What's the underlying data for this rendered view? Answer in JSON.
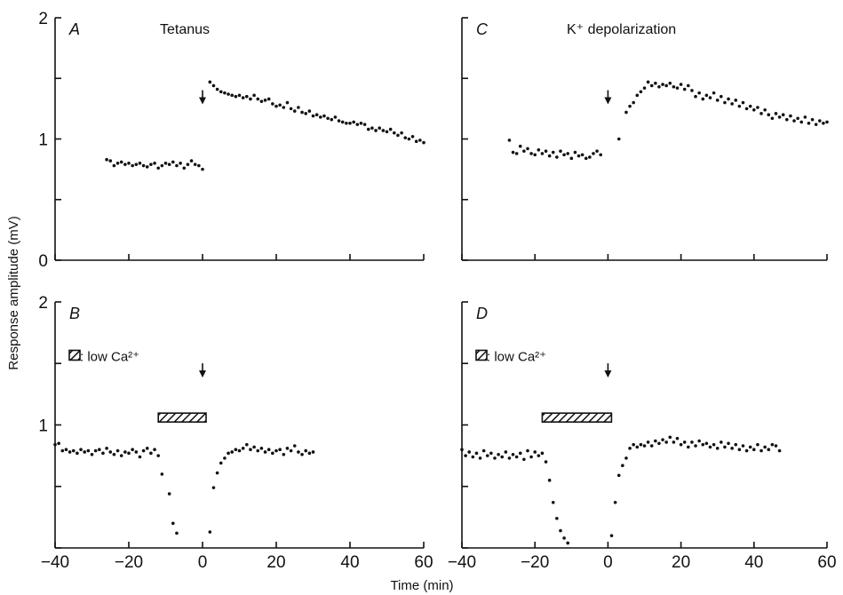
{
  "figure": {
    "ylabel": "Response amplitude (mV)",
    "xlabel": "Time (min)"
  },
  "chart_data": [
    {
      "panel": "A",
      "title": "Tetanus",
      "type": "scatter",
      "xlim": [
        -40,
        60
      ],
      "ylim": [
        0,
        2
      ],
      "yticks": [
        "0",
        "1",
        "2"
      ],
      "xticks": [],
      "arrow_at": 0,
      "bar": null,
      "legend": "",
      "points": [
        [
          -26,
          0.83
        ],
        [
          -25,
          0.82
        ],
        [
          -24,
          0.78
        ],
        [
          -23,
          0.8
        ],
        [
          -22,
          0.81
        ],
        [
          -21,
          0.79
        ],
        [
          -20,
          0.8
        ],
        [
          -19,
          0.78
        ],
        [
          -18,
          0.79
        ],
        [
          -17,
          0.8
        ],
        [
          -16,
          0.78
        ],
        [
          -15,
          0.77
        ],
        [
          -14,
          0.79
        ],
        [
          -13,
          0.8
        ],
        [
          -12,
          0.76
        ],
        [
          -11,
          0.78
        ],
        [
          -10,
          0.8
        ],
        [
          -9,
          0.79
        ],
        [
          -8,
          0.81
        ],
        [
          -7,
          0.78
        ],
        [
          -6,
          0.8
        ],
        [
          -5,
          0.76
        ],
        [
          -4,
          0.79
        ],
        [
          -3,
          0.82
        ],
        [
          -2,
          0.79
        ],
        [
          -1,
          0.78
        ],
        [
          0,
          0.75
        ],
        [
          2,
          1.47
        ],
        [
          3,
          1.44
        ],
        [
          4,
          1.41
        ],
        [
          5,
          1.39
        ],
        [
          6,
          1.38
        ],
        [
          7,
          1.37
        ],
        [
          8,
          1.36
        ],
        [
          9,
          1.35
        ],
        [
          10,
          1.36
        ],
        [
          11,
          1.34
        ],
        [
          12,
          1.35
        ],
        [
          13,
          1.33
        ],
        [
          14,
          1.36
        ],
        [
          15,
          1.33
        ],
        [
          16,
          1.31
        ],
        [
          17,
          1.32
        ],
        [
          18,
          1.33
        ],
        [
          19,
          1.29
        ],
        [
          20,
          1.27
        ],
        [
          21,
          1.28
        ],
        [
          22,
          1.26
        ],
        [
          23,
          1.3
        ],
        [
          24,
          1.25
        ],
        [
          25,
          1.23
        ],
        [
          26,
          1.26
        ],
        [
          27,
          1.22
        ],
        [
          28,
          1.21
        ],
        [
          29,
          1.23
        ],
        [
          30,
          1.19
        ],
        [
          31,
          1.2
        ],
        [
          32,
          1.18
        ],
        [
          33,
          1.19
        ],
        [
          34,
          1.17
        ],
        [
          35,
          1.16
        ],
        [
          36,
          1.18
        ],
        [
          37,
          1.15
        ],
        [
          38,
          1.14
        ],
        [
          39,
          1.13
        ],
        [
          40,
          1.13
        ],
        [
          41,
          1.14
        ],
        [
          42,
          1.12
        ],
        [
          43,
          1.13
        ],
        [
          44,
          1.12
        ],
        [
          45,
          1.08
        ],
        [
          46,
          1.09
        ],
        [
          47,
          1.07
        ],
        [
          48,
          1.09
        ],
        [
          49,
          1.07
        ],
        [
          50,
          1.06
        ],
        [
          51,
          1.08
        ],
        [
          52,
          1.05
        ],
        [
          53,
          1.03
        ],
        [
          54,
          1.05
        ],
        [
          55,
          1.01
        ],
        [
          56,
          1.0
        ],
        [
          57,
          1.02
        ],
        [
          58,
          0.98
        ],
        [
          59,
          0.99
        ],
        [
          60,
          0.97
        ]
      ]
    },
    {
      "panel": "C",
      "title": "K⁺ depolarization",
      "type": "scatter",
      "xlim": [
        -40,
        60
      ],
      "ylim": [
        0,
        2
      ],
      "yticks": [
        "",
        "",
        ""
      ],
      "xticks": [],
      "arrow_at": 0,
      "bar": null,
      "legend": "",
      "points": [
        [
          -27,
          0.99
        ],
        [
          -26,
          0.89
        ],
        [
          -25,
          0.88
        ],
        [
          -24,
          0.94
        ],
        [
          -23,
          0.9
        ],
        [
          -22,
          0.92
        ],
        [
          -21,
          0.88
        ],
        [
          -20,
          0.87
        ],
        [
          -19,
          0.91
        ],
        [
          -18,
          0.88
        ],
        [
          -17,
          0.9
        ],
        [
          -16,
          0.86
        ],
        [
          -15,
          0.89
        ],
        [
          -14,
          0.85
        ],
        [
          -13,
          0.9
        ],
        [
          -12,
          0.87
        ],
        [
          -11,
          0.88
        ],
        [
          -10,
          0.84
        ],
        [
          -9,
          0.89
        ],
        [
          -8,
          0.86
        ],
        [
          -7,
          0.87
        ],
        [
          -6,
          0.84
        ],
        [
          -5,
          0.85
        ],
        [
          -4,
          0.88
        ],
        [
          -3,
          0.9
        ],
        [
          -2,
          0.87
        ],
        [
          3,
          1.0
        ],
        [
          5,
          1.22
        ],
        [
          6,
          1.27
        ],
        [
          7,
          1.3
        ],
        [
          8,
          1.36
        ],
        [
          9,
          1.39
        ],
        [
          10,
          1.42
        ],
        [
          11,
          1.47
        ],
        [
          12,
          1.44
        ],
        [
          13,
          1.46
        ],
        [
          14,
          1.43
        ],
        [
          15,
          1.45
        ],
        [
          16,
          1.44
        ],
        [
          17,
          1.46
        ],
        [
          18,
          1.43
        ],
        [
          19,
          1.42
        ],
        [
          20,
          1.45
        ],
        [
          21,
          1.41
        ],
        [
          22,
          1.44
        ],
        [
          23,
          1.4
        ],
        [
          24,
          1.35
        ],
        [
          25,
          1.38
        ],
        [
          26,
          1.33
        ],
        [
          27,
          1.36
        ],
        [
          28,
          1.34
        ],
        [
          29,
          1.38
        ],
        [
          30,
          1.32
        ],
        [
          31,
          1.35
        ],
        [
          32,
          1.3
        ],
        [
          33,
          1.33
        ],
        [
          34,
          1.29
        ],
        [
          35,
          1.32
        ],
        [
          36,
          1.27
        ],
        [
          37,
          1.3
        ],
        [
          38,
          1.25
        ],
        [
          39,
          1.27
        ],
        [
          40,
          1.24
        ],
        [
          41,
          1.26
        ],
        [
          42,
          1.21
        ],
        [
          43,
          1.24
        ],
        [
          44,
          1.2
        ],
        [
          45,
          1.17
        ],
        [
          46,
          1.21
        ],
        [
          47,
          1.18
        ],
        [
          48,
          1.2
        ],
        [
          49,
          1.16
        ],
        [
          50,
          1.19
        ],
        [
          51,
          1.15
        ],
        [
          52,
          1.17
        ],
        [
          53,
          1.14
        ],
        [
          54,
          1.18
        ],
        [
          55,
          1.13
        ],
        [
          56,
          1.16
        ],
        [
          57,
          1.12
        ],
        [
          58,
          1.15
        ],
        [
          59,
          1.13
        ],
        [
          60,
          1.14
        ]
      ]
    },
    {
      "panel": "B",
      "title": "",
      "type": "scatter",
      "xlim": [
        -40,
        60
      ],
      "ylim": [
        0,
        2
      ],
      "yticks": [
        "",
        "1",
        "2"
      ],
      "xticks": [
        "−40",
        "−20",
        "0",
        "20",
        "40",
        "60"
      ],
      "arrow_at": 0,
      "bar": [
        -12,
        0
      ],
      "legend": ": low Ca²⁺",
      "points": [
        [
          -40,
          0.84
        ],
        [
          -39,
          0.85
        ],
        [
          -38,
          0.79
        ],
        [
          -37,
          0.8
        ],
        [
          -36,
          0.78
        ],
        [
          -35,
          0.79
        ],
        [
          -34,
          0.77
        ],
        [
          -33,
          0.8
        ],
        [
          -32,
          0.78
        ],
        [
          -31,
          0.79
        ],
        [
          -30,
          0.76
        ],
        [
          -29,
          0.79
        ],
        [
          -28,
          0.8
        ],
        [
          -27,
          0.77
        ],
        [
          -26,
          0.81
        ],
        [
          -25,
          0.78
        ],
        [
          -24,
          0.76
        ],
        [
          -23,
          0.79
        ],
        [
          -22,
          0.75
        ],
        [
          -21,
          0.78
        ],
        [
          -20,
          0.77
        ],
        [
          -19,
          0.8
        ],
        [
          -18,
          0.78
        ],
        [
          -17,
          0.74
        ],
        [
          -16,
          0.79
        ],
        [
          -15,
          0.81
        ],
        [
          -14,
          0.77
        ],
        [
          -13,
          0.8
        ],
        [
          -12,
          0.75
        ],
        [
          -11,
          0.6
        ],
        [
          -9,
          0.44
        ],
        [
          -8,
          0.2
        ],
        [
          -7,
          0.12
        ],
        [
          2,
          0.13
        ],
        [
          3,
          0.49
        ],
        [
          4,
          0.61
        ],
        [
          5,
          0.69
        ],
        [
          6,
          0.73
        ],
        [
          7,
          0.77
        ],
        [
          8,
          0.78
        ],
        [
          9,
          0.8
        ],
        [
          10,
          0.79
        ],
        [
          11,
          0.81
        ],
        [
          12,
          0.84
        ],
        [
          13,
          0.8
        ],
        [
          14,
          0.82
        ],
        [
          15,
          0.79
        ],
        [
          16,
          0.81
        ],
        [
          17,
          0.78
        ],
        [
          18,
          0.8
        ],
        [
          19,
          0.77
        ],
        [
          20,
          0.79
        ],
        [
          21,
          0.8
        ],
        [
          22,
          0.76
        ],
        [
          23,
          0.81
        ],
        [
          24,
          0.79
        ],
        [
          25,
          0.83
        ],
        [
          26,
          0.78
        ],
        [
          27,
          0.76
        ],
        [
          28,
          0.79
        ],
        [
          29,
          0.77
        ],
        [
          30,
          0.78
        ]
      ]
    },
    {
      "panel": "D",
      "title": "",
      "type": "scatter",
      "xlim": [
        -40,
        60
      ],
      "ylim": [
        0,
        2
      ],
      "yticks": [
        "",
        "",
        ""
      ],
      "xticks": [
        "−40",
        "−20",
        "0",
        "20",
        "40",
        "60"
      ],
      "arrow_at": 0,
      "bar": [
        -18,
        0
      ],
      "legend": ": low Ca²⁺",
      "points": [
        [
          -40,
          0.8
        ],
        [
          -39,
          0.75
        ],
        [
          -38,
          0.78
        ],
        [
          -37,
          0.74
        ],
        [
          -36,
          0.77
        ],
        [
          -35,
          0.73
        ],
        [
          -34,
          0.79
        ],
        [
          -33,
          0.75
        ],
        [
          -32,
          0.77
        ],
        [
          -31,
          0.73
        ],
        [
          -30,
          0.76
        ],
        [
          -29,
          0.74
        ],
        [
          -28,
          0.78
        ],
        [
          -27,
          0.73
        ],
        [
          -26,
          0.76
        ],
        [
          -25,
          0.74
        ],
        [
          -24,
          0.77
        ],
        [
          -23,
          0.72
        ],
        [
          -22,
          0.79
        ],
        [
          -21,
          0.74
        ],
        [
          -20,
          0.78
        ],
        [
          -19,
          0.75
        ],
        [
          -18,
          0.77
        ],
        [
          -17,
          0.7
        ],
        [
          -16,
          0.55
        ],
        [
          -15,
          0.37
        ],
        [
          -14,
          0.24
        ],
        [
          -13,
          0.14
        ],
        [
          -12,
          0.08
        ],
        [
          -11,
          0.04
        ],
        [
          1,
          0.1
        ],
        [
          2,
          0.37
        ],
        [
          3,
          0.59
        ],
        [
          4,
          0.67
        ],
        [
          5,
          0.73
        ],
        [
          6,
          0.81
        ],
        [
          7,
          0.84
        ],
        [
          8,
          0.82
        ],
        [
          9,
          0.84
        ],
        [
          10,
          0.83
        ],
        [
          11,
          0.86
        ],
        [
          12,
          0.83
        ],
        [
          13,
          0.87
        ],
        [
          14,
          0.85
        ],
        [
          15,
          0.88
        ],
        [
          16,
          0.86
        ],
        [
          17,
          0.9
        ],
        [
          18,
          0.86
        ],
        [
          19,
          0.89
        ],
        [
          20,
          0.84
        ],
        [
          21,
          0.86
        ],
        [
          22,
          0.82
        ],
        [
          23,
          0.86
        ],
        [
          24,
          0.83
        ],
        [
          25,
          0.87
        ],
        [
          26,
          0.84
        ],
        [
          27,
          0.85
        ],
        [
          28,
          0.82
        ],
        [
          29,
          0.84
        ],
        [
          30,
          0.81
        ],
        [
          31,
          0.86
        ],
        [
          32,
          0.82
        ],
        [
          33,
          0.85
        ],
        [
          34,
          0.81
        ],
        [
          35,
          0.84
        ],
        [
          36,
          0.8
        ],
        [
          37,
          0.83
        ],
        [
          38,
          0.79
        ],
        [
          39,
          0.82
        ],
        [
          40,
          0.8
        ],
        [
          41,
          0.84
        ],
        [
          42,
          0.79
        ],
        [
          43,
          0.82
        ],
        [
          44,
          0.8
        ],
        [
          45,
          0.84
        ],
        [
          46,
          0.83
        ],
        [
          47,
          0.79
        ]
      ]
    }
  ]
}
